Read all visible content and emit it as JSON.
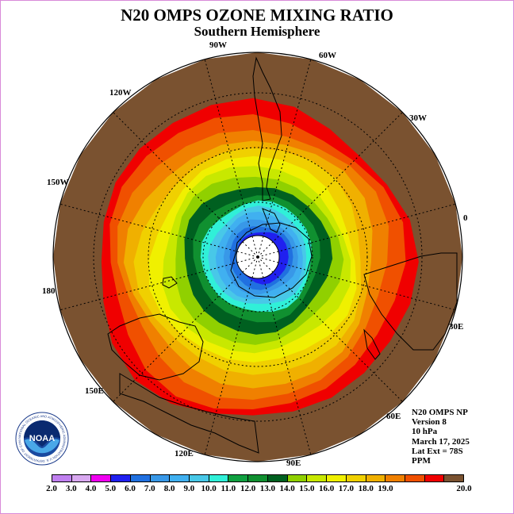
{
  "title": "N20 OMPS OZONE MIXING RATIO",
  "subtitle": "Southern Hemisphere",
  "lon_labels": {
    "90W": "90W",
    "60W": "60W",
    "30W": "30W",
    "0": "0",
    "30E": "30E",
    "60E": "60E",
    "90E": "90E",
    "120E": "120E",
    "150E": "150E",
    "180": "180",
    "150W": "150W",
    "120W": "120W"
  },
  "info": {
    "line1": "N20 OMPS NP",
    "line2": "Version 8",
    "line3": "10 hPa",
    "line4": "March 17, 2025",
    "line5": "Lat Ext = 78S",
    "line6": "PPM"
  },
  "logo": {
    "name": "NOAA",
    "ring_text": "NATIONAL OCEANIC AND ATMOSPHERIC ADMINISTRATION U.S. DEPARTMENT OF COMMERCE"
  },
  "colorbar": {
    "colors": [
      "#c080f0",
      "#d8a8f0",
      "#f000f0",
      "#2020f0",
      "#2070e0",
      "#3898e8",
      "#40b0f0",
      "#48c8e8",
      "#30f0d8",
      "#10a040",
      "#109030",
      "#006020",
      "#90d000",
      "#c8e800",
      "#f0f000",
      "#f0d000",
      "#f0b000",
      "#f08000",
      "#f05000",
      "#f00000",
      "#7a5230"
    ],
    "ticks": [
      "2.0",
      "3.0",
      "4.0",
      "5.0",
      "6.0",
      "7.0",
      "8.0",
      "9.0",
      "10.0",
      "11.0",
      "12.0",
      "13.0",
      "14.0",
      "15.0",
      "16.0",
      "17.0",
      "18.0",
      "19.0",
      "20.0"
    ]
  },
  "map": {
    "ring_colors": [
      "#7a5230",
      "#f00000",
      "#f05000",
      "#f08000",
      "#f0b000",
      "#f0d000",
      "#f0f000",
      "#c8e800",
      "#90d000",
      "#006020",
      "#109030",
      "#30f0d8",
      "#48c8e8",
      "#40b0f0",
      "#3898e8",
      "#2070e0",
      "#2020f0"
    ],
    "pole_fill": "#ffffff",
    "land_outline": "#000000"
  }
}
